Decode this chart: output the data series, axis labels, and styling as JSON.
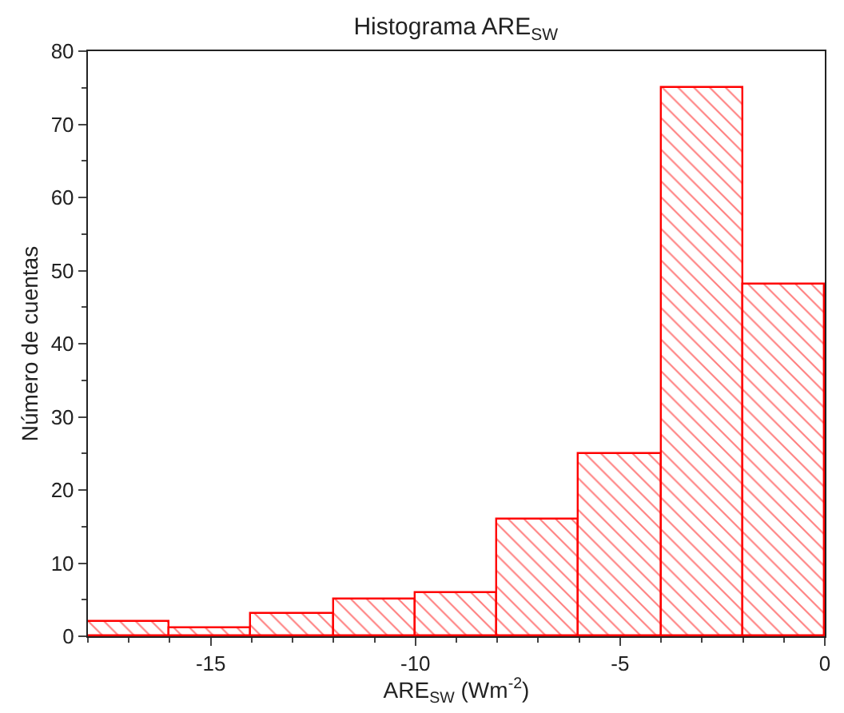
{
  "chart_data": {
    "type": "histogram",
    "title": "Histograma ARE$_{SW}$",
    "xlabel": "ARE$_{SW}$ (Wm$^{-2}$)",
    "ylabel": "Número de cuentas",
    "bins": [
      -18,
      -16,
      -14,
      -12,
      -10,
      -8,
      -6,
      -4,
      -2,
      0
    ],
    "values": [
      2,
      1,
      3,
      5,
      6,
      16,
      25,
      75,
      48
    ],
    "color": "#ff0000",
    "xlim": [
      -18,
      0
    ],
    "xticks": [
      -15,
      -10,
      -5,
      0
    ],
    "ylim": [
      0,
      80
    ],
    "yticks": [
      0,
      10,
      20,
      30,
      40,
      50,
      60,
      70,
      80
    ]
  }
}
